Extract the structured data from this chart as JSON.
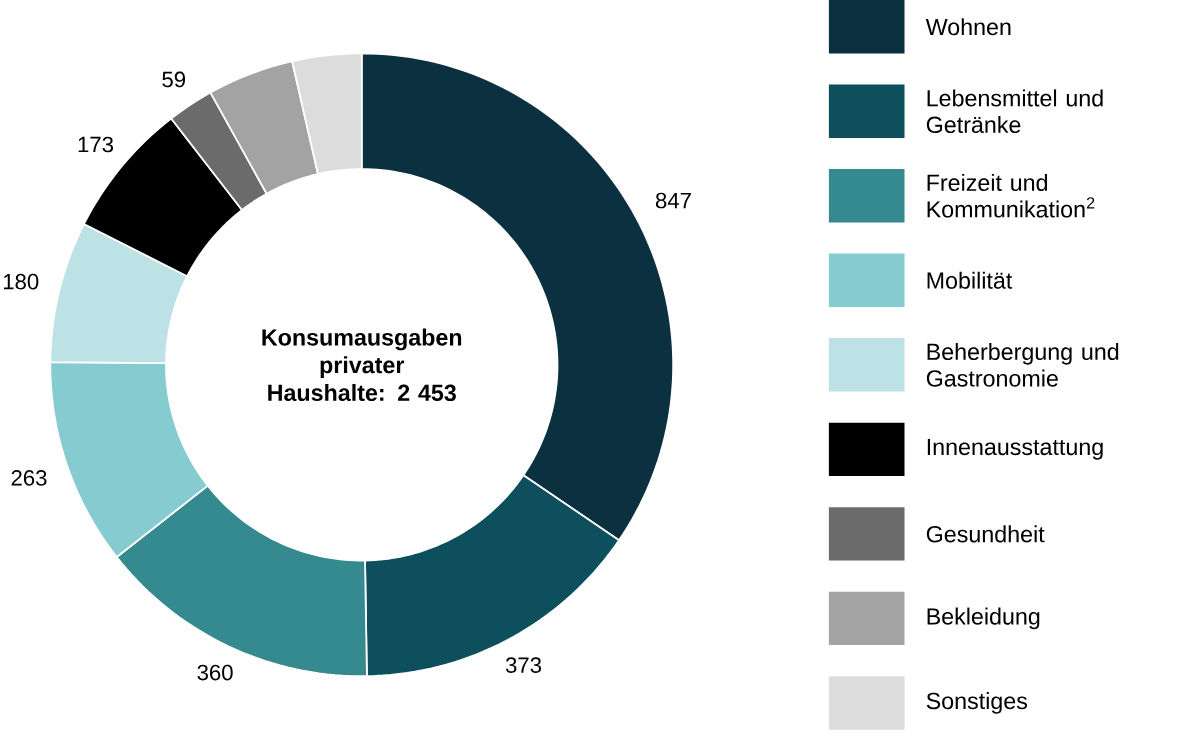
{
  "chart_data": {
    "type": "donut",
    "categories": [
      "Wohnen",
      "Lebensmittel und Getränke",
      "Freizeit und Kommunikation$^{2}$",
      "Mobilität",
      "Beherbergung und Gastronomie",
      "Innenausstattung",
      "Gesundheit",
      "Bekleidung",
      "Sonstiges"
    ],
    "values": [
      847,
      373,
      360,
      263,
      180,
      173,
      59,
      110,
      88
    ],
    "value_labels": [
      "847",
      "373",
      "360",
      "263",
      "180",
      "173",
      "59",
      null,
      null
    ],
    "colors": [
      "#0b3140",
      "#0d4f5c",
      "#358a8f",
      "#86cbd0",
      "#bde2e6",
      "#000000",
      "#6b6b6b",
      "#a3a3a3",
      "#dcdcdc"
    ],
    "annotations": [
      "**Konsumausgaben privater Haushalte: 2 453**"
    ],
    "legend": "right"
  }
}
